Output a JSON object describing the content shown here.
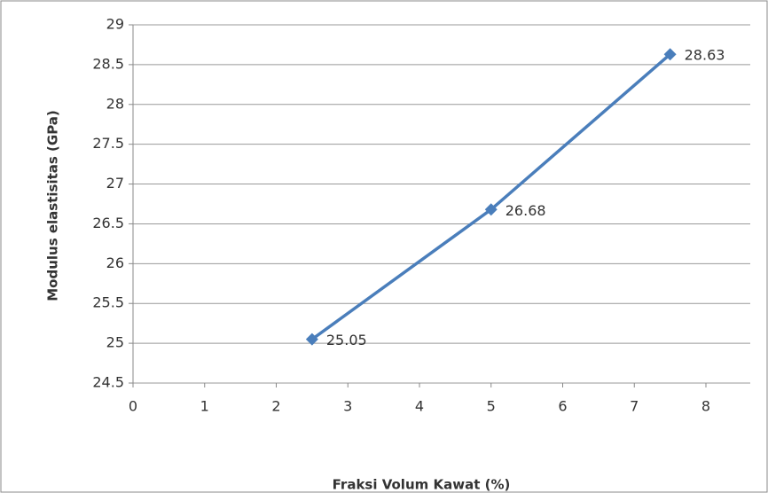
{
  "chart_data": {
    "type": "line",
    "x_label": "Fraksi Volum Kawat (%)",
    "y_label": "Modulus elastisitas (GPa)",
    "x": [
      2.5,
      5,
      7.5
    ],
    "values": [
      25.05,
      26.68,
      28.63
    ],
    "color": "#4a7ebb",
    "xlim": [
      0,
      8
    ],
    "xticks": [
      0,
      1,
      2,
      3,
      4,
      5,
      6,
      7,
      8
    ],
    "ylim": [
      24.5,
      29
    ],
    "yticks": [
      24.5,
      25,
      25.5,
      26,
      26.5,
      27,
      27.5,
      28,
      28.5,
      29
    ],
    "grid": true
  }
}
